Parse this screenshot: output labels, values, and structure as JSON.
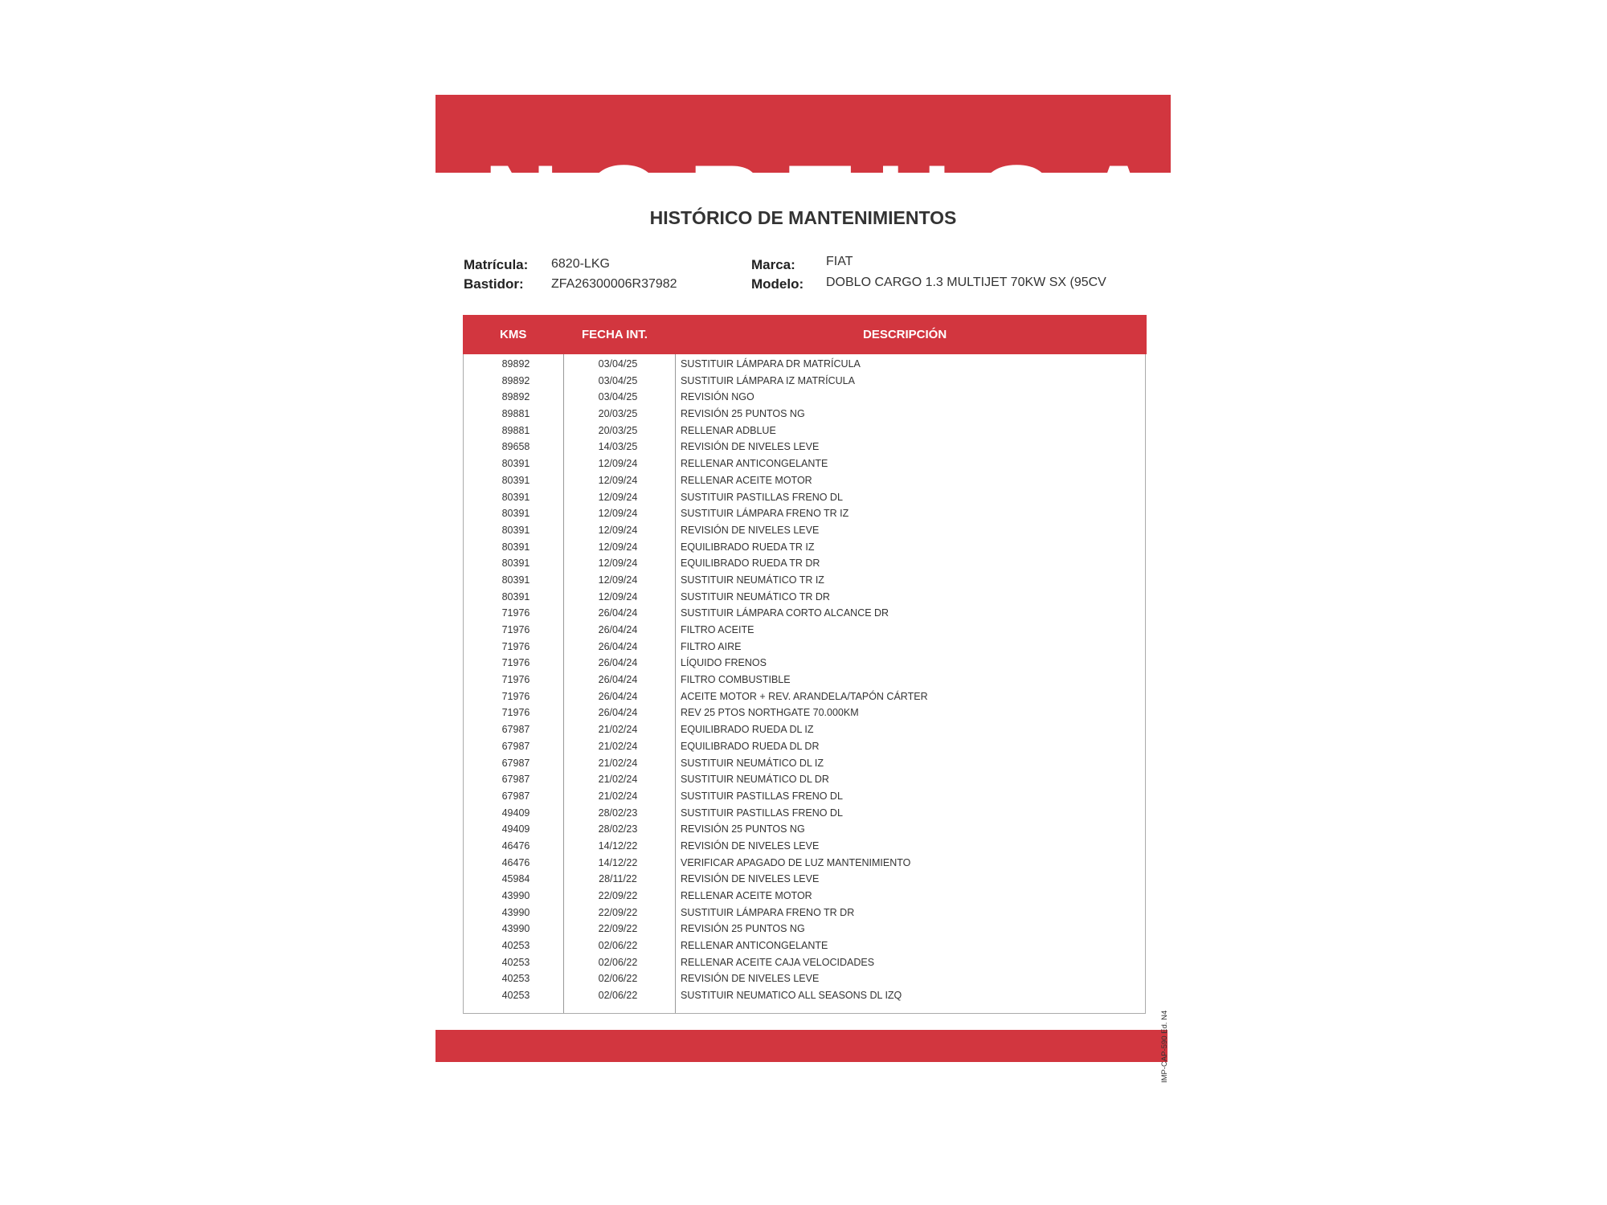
{
  "header": {
    "logo_text": "NORTHGATE",
    "brand_color": "#d2363f"
  },
  "title": "HISTÓRICO DE MANTENIMIENTOS",
  "vehicle": {
    "matricula_label": "Matrícula:",
    "matricula": "6820-LKG",
    "bastidor_label": "Bastidor:",
    "bastidor": "ZFA26300006R37982",
    "marca_label": "Marca:",
    "marca": "FIAT",
    "modelo_label": "Modelo:",
    "modelo": "DOBLO CARGO 1.3 MULTIJET 70KW SX (95CV"
  },
  "table": {
    "columns": [
      "KMS",
      "FECHA INT.",
      "DESCRIPCIÓN"
    ],
    "rows": [
      [
        "89892",
        "03/04/25",
        "SUSTITUIR LÁMPARA DR MATRÍCULA"
      ],
      [
        "89892",
        "03/04/25",
        "SUSTITUIR LÁMPARA IZ MATRÍCULA"
      ],
      [
        "89892",
        "03/04/25",
        "REVISIÓN NGO"
      ],
      [
        "89881",
        "20/03/25",
        "REVISIÓN 25 PUNTOS NG"
      ],
      [
        "89881",
        "20/03/25",
        "RELLENAR ADBLUE"
      ],
      [
        "89658",
        "14/03/25",
        "REVISIÓN DE NIVELES LEVE"
      ],
      [
        "80391",
        "12/09/24",
        "RELLENAR ANTICONGELANTE"
      ],
      [
        "80391",
        "12/09/24",
        "RELLENAR ACEITE MOTOR"
      ],
      [
        "80391",
        "12/09/24",
        "SUSTITUIR PASTILLAS FRENO DL"
      ],
      [
        "80391",
        "12/09/24",
        "SUSTITUIR LÁMPARA FRENO TR IZ"
      ],
      [
        "80391",
        "12/09/24",
        "REVISIÓN DE NIVELES LEVE"
      ],
      [
        "80391",
        "12/09/24",
        "EQUILIBRADO RUEDA TR IZ"
      ],
      [
        "80391",
        "12/09/24",
        "EQUILIBRADO RUEDA TR DR"
      ],
      [
        "80391",
        "12/09/24",
        "SUSTITUIR NEUMÁTICO TR IZ"
      ],
      [
        "80391",
        "12/09/24",
        "SUSTITUIR NEUMÁTICO TR DR"
      ],
      [
        "71976",
        "26/04/24",
        "SUSTITUIR LÁMPARA CORTO ALCANCE DR"
      ],
      [
        "71976",
        "26/04/24",
        "FILTRO ACEITE"
      ],
      [
        "71976",
        "26/04/24",
        "FILTRO AIRE"
      ],
      [
        "71976",
        "26/04/24",
        "LÍQUIDO FRENOS"
      ],
      [
        "71976",
        "26/04/24",
        "FILTRO COMBUSTIBLE"
      ],
      [
        "71976",
        "26/04/24",
        "ACEITE MOTOR + REV. ARANDELA/TAPÓN CÁRTER"
      ],
      [
        "71976",
        "26/04/24",
        "REV 25 PTOS NORTHGATE 70.000KM"
      ],
      [
        "67987",
        "21/02/24",
        "EQUILIBRADO RUEDA DL IZ"
      ],
      [
        "67987",
        "21/02/24",
        "EQUILIBRADO RUEDA DL DR"
      ],
      [
        "67987",
        "21/02/24",
        "SUSTITUIR NEUMÁTICO DL IZ"
      ],
      [
        "67987",
        "21/02/24",
        "SUSTITUIR NEUMÁTICO DL DR"
      ],
      [
        "67987",
        "21/02/24",
        "SUSTITUIR PASTILLAS FRENO DL"
      ],
      [
        "49409",
        "28/02/23",
        "SUSTITUIR PASTILLAS FRENO DL"
      ],
      [
        "49409",
        "28/02/23",
        "REVISIÓN 25 PUNTOS NG"
      ],
      [
        "46476",
        "14/12/22",
        "REVISIÓN DE NIVELES LEVE"
      ],
      [
        "46476",
        "14/12/22",
        "VERIFICAR APAGADO DE LUZ MANTENIMIENTO"
      ],
      [
        "45984",
        "28/11/22",
        "REVISIÓN DE NIVELES LEVE"
      ],
      [
        "43990",
        "22/09/22",
        "RELLENAR ACEITE MOTOR"
      ],
      [
        "43990",
        "22/09/22",
        "SUSTITUIR LÁMPARA FRENO TR DR"
      ],
      [
        "43990",
        "22/09/22",
        "REVISIÓN 25 PUNTOS NG"
      ],
      [
        "40253",
        "02/06/22",
        "RELLENAR ANTICONGELANTE"
      ],
      [
        "40253",
        "02/06/22",
        "RELLENAR ACEITE CAJA VELOCIDADES"
      ],
      [
        "40253",
        "02/06/22",
        "REVISIÓN DE NIVELES LEVE"
      ],
      [
        "40253",
        "02/06/22",
        "SUSTITUIR NEUMATICO ALL SEASONS DL IZQ"
      ]
    ]
  },
  "footer": {
    "form_code": "IMP-CAP-590 Ed. N4"
  }
}
